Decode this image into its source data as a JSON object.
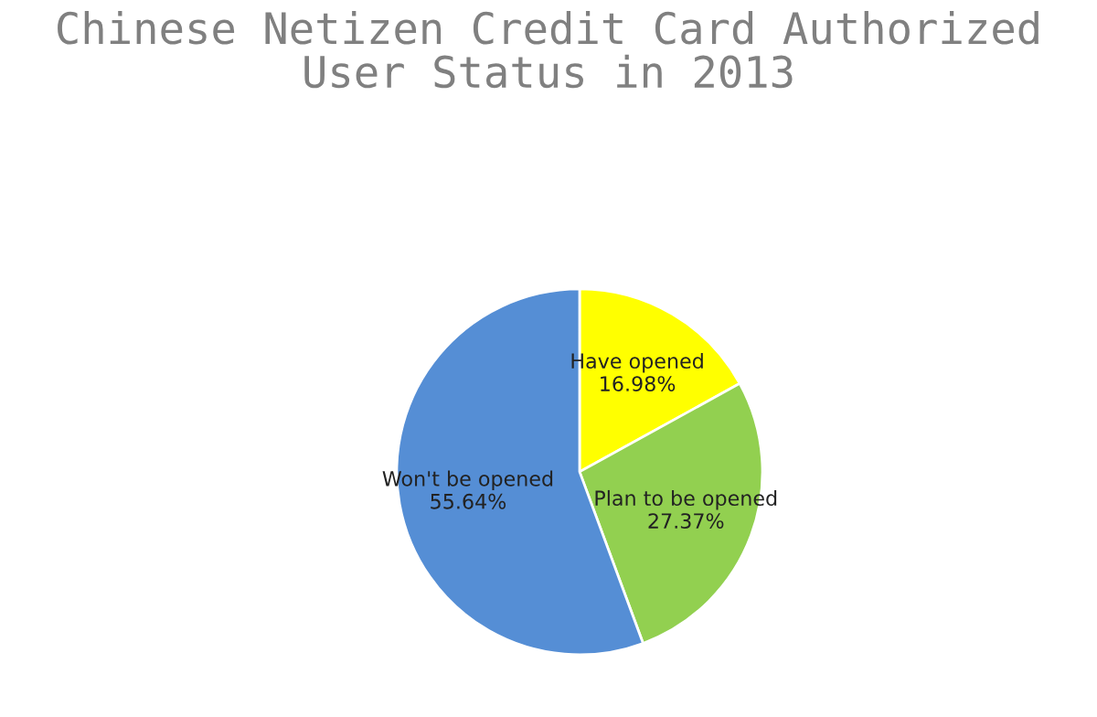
{
  "chart_data": {
    "type": "pie",
    "title": "Chinese Netizen Credit Card Authorized\nUser Status in 2013",
    "categories": [
      "Have opened",
      "Plan to be opened",
      "Won't be opened"
    ],
    "values": [
      16.98,
      27.37,
      55.64
    ],
    "value_labels": [
      "16.98%",
      "27.37%",
      "55.64%"
    ],
    "colors": [
      "#ffff00",
      "#92d050",
      "#558ed5"
    ],
    "legend": false
  }
}
